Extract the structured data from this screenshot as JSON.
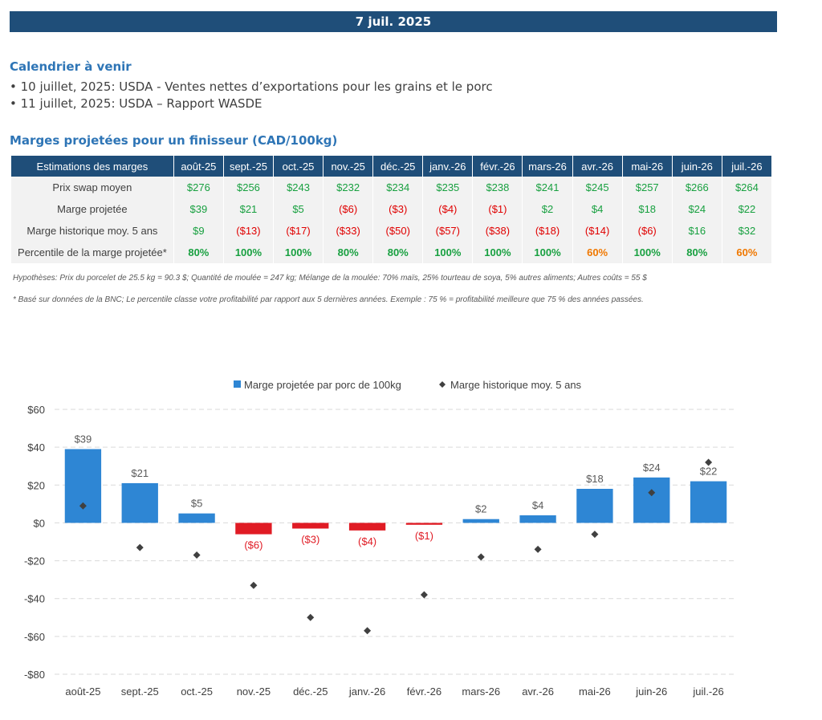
{
  "header": {
    "date": "7 juil. 2025"
  },
  "calendar": {
    "title": "Calendrier à venir",
    "items": [
      "• 10 juillet, 2025: USDA - Ventes nettes d’exportations pour les grains et le porc",
      "• 11 juillet, 2025: USDA – Rapport WASDE"
    ]
  },
  "margins": {
    "title": "Marges projetées pour un finisseur (CAD/100kg)",
    "header_label": "Estimations des marges",
    "months": [
      "août-25",
      "sept.-25",
      "oct.-25",
      "nov.-25",
      "déc.-25",
      "janv.-26",
      "févr.-26",
      "mars-26",
      "avr.-26",
      "mai-26",
      "juin-26",
      "juil.-26"
    ],
    "rows": [
      {
        "label": "Prix swap moyen",
        "values": [
          "$276",
          "$256",
          "$243",
          "$232",
          "$234",
          "$235",
          "$238",
          "$241",
          "$245",
          "$257",
          "$266",
          "$264"
        ]
      },
      {
        "label": "Marge projetée",
        "values": [
          "$39",
          "$21",
          "$5",
          "($6)",
          "($3)",
          "($4)",
          "($1)",
          "$2",
          "$4",
          "$18",
          "$24",
          "$22"
        ]
      },
      {
        "label": "Marge historique moy. 5 ans",
        "values": [
          "$9",
          "($13)",
          "($17)",
          "($33)",
          "($50)",
          "($57)",
          "($38)",
          "($18)",
          "($14)",
          "($6)",
          "$16",
          "$32"
        ]
      },
      {
        "label": "Percentile de la marge projetée*",
        "values": [
          "80%",
          "100%",
          "100%",
          "80%",
          "80%",
          "100%",
          "100%",
          "100%",
          "60%",
          "100%",
          "80%",
          "60%"
        ]
      }
    ],
    "colors": {
      "positive": "#18a040",
      "negative": "#e00000",
      "percentile_green": "#18a040",
      "percentile_orange": "#f07800"
    }
  },
  "notes": {
    "assumptions": "Hypothèses: Prix du porcelet de 25.5 kg = 90.3 $; Quantité de moulée = 247 kg; Mélange de la moulée: 70% maïs, 25% tourteau de soya, 5% autres aliments; Autres coûts = 55 $",
    "footnote": "* Basé sur données de la BNC; Le percentile classe votre profitabilité par rapport aux 5 dernières années. Exemple : 75 % = profitabilité meilleure que 75 % des années passées."
  },
  "chart_data": {
    "type": "bar",
    "categories": [
      "août-25",
      "sept.-25",
      "oct.-25",
      "nov.-25",
      "déc.-25",
      "janv.-26",
      "févr.-26",
      "mars-26",
      "avr.-26",
      "mai-26",
      "juin-26",
      "juil.-26"
    ],
    "series": [
      {
        "name": "Marge projetée par porc de 100kg",
        "type": "bar",
        "values": [
          39,
          21,
          5,
          -6,
          -3,
          -4,
          -1,
          2,
          4,
          18,
          24,
          22
        ],
        "labels": [
          "$39",
          "$21",
          "$5",
          "($6)",
          "($3)",
          "($4)",
          "($1)",
          "$2",
          "$4",
          "$18",
          "$24",
          "$22"
        ]
      },
      {
        "name": "Marge historique moy. 5 ans",
        "type": "scatter",
        "values": [
          9,
          -13,
          -17,
          -33,
          -50,
          -57,
          -38,
          -18,
          -14,
          -6,
          16,
          32
        ]
      }
    ],
    "ylim": [
      -80,
      60
    ],
    "yticks": [
      60,
      40,
      20,
      0,
      -20,
      -40,
      -60,
      -80
    ],
    "ytick_labels": [
      "$60",
      "$40",
      "$20",
      "$0",
      "-$20",
      "-$40",
      "-$60",
      "-$80"
    ],
    "grid": true,
    "legend": "top",
    "colors": {
      "bar_positive": "#2e86d4",
      "bar_negative": "#e01b24",
      "marker": "#404040",
      "label_positive": "#595959",
      "label_negative": "#e01b24"
    }
  }
}
